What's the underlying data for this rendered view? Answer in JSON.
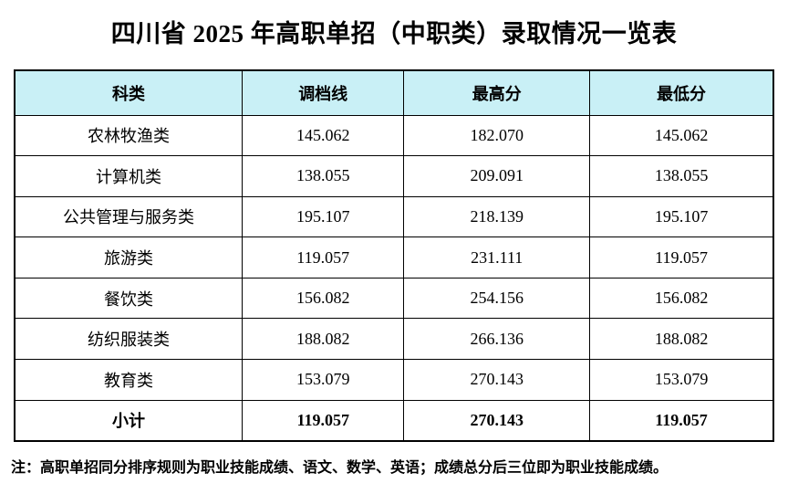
{
  "page": {
    "title": "四川省 2025 年高职单招（中职类）录取情况一览表",
    "note": "注：高职单招同分排序规则为职业技能成绩、语文、数学、英语；成绩总分后三位即为职业技能成绩。"
  },
  "colors": {
    "header_bg": "#c9f0f6",
    "border": "#000000",
    "text": "#000000"
  },
  "table": {
    "headers": [
      "科类",
      "调档线",
      "最高分",
      "最低分"
    ],
    "rows": [
      {
        "category": "农林牧渔类",
        "cutoff": "145.062",
        "max": "182.070",
        "min": "145.062"
      },
      {
        "category": "计算机类",
        "cutoff": "138.055",
        "max": "209.091",
        "min": "138.055"
      },
      {
        "category": "公共管理与服务类",
        "cutoff": "195.107",
        "max": "218.139",
        "min": "195.107"
      },
      {
        "category": "旅游类",
        "cutoff": "119.057",
        "max": "231.111",
        "min": "119.057"
      },
      {
        "category": "餐饮类",
        "cutoff": "156.082",
        "max": "254.156",
        "min": "156.082"
      },
      {
        "category": "纺织服装类",
        "cutoff": "188.082",
        "max": "266.136",
        "min": "188.082"
      },
      {
        "category": "教育类",
        "cutoff": "153.079",
        "max": "270.143",
        "min": "153.079"
      },
      {
        "category": "小计",
        "cutoff": "119.057",
        "max": "270.143",
        "min": "119.057"
      }
    ]
  }
}
